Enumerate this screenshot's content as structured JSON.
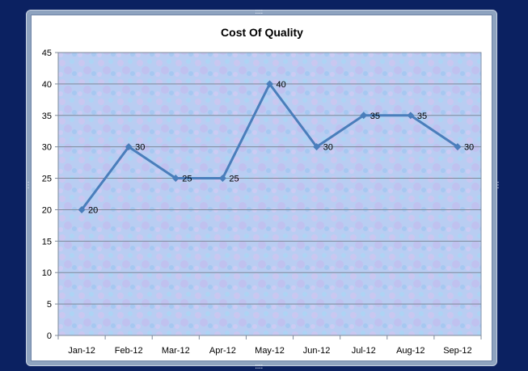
{
  "chart_data": {
    "type": "line",
    "title": "Cost Of Quality",
    "xlabel": "",
    "ylabel": "",
    "categories": [
      "Jan-12",
      "Feb-12",
      "Mar-12",
      "Apr-12",
      "May-12",
      "Jun-12",
      "Jul-12",
      "Aug-12",
      "Sep-12"
    ],
    "series": [
      {
        "values": [
          20,
          30,
          25,
          25,
          40,
          30,
          35,
          35,
          30
        ]
      }
    ],
    "ylim": [
      0,
      45
    ],
    "yticks": [
      0,
      5,
      10,
      15,
      20,
      25,
      30,
      35,
      40,
      45
    ],
    "grid": true,
    "legend": "none",
    "data_labels": true,
    "colors": {
      "line": "#4a7ebb",
      "marker": "#4a7ebb",
      "grid": "#7f8a9a",
      "text": "#000000",
      "background": "#0b2161"
    }
  }
}
